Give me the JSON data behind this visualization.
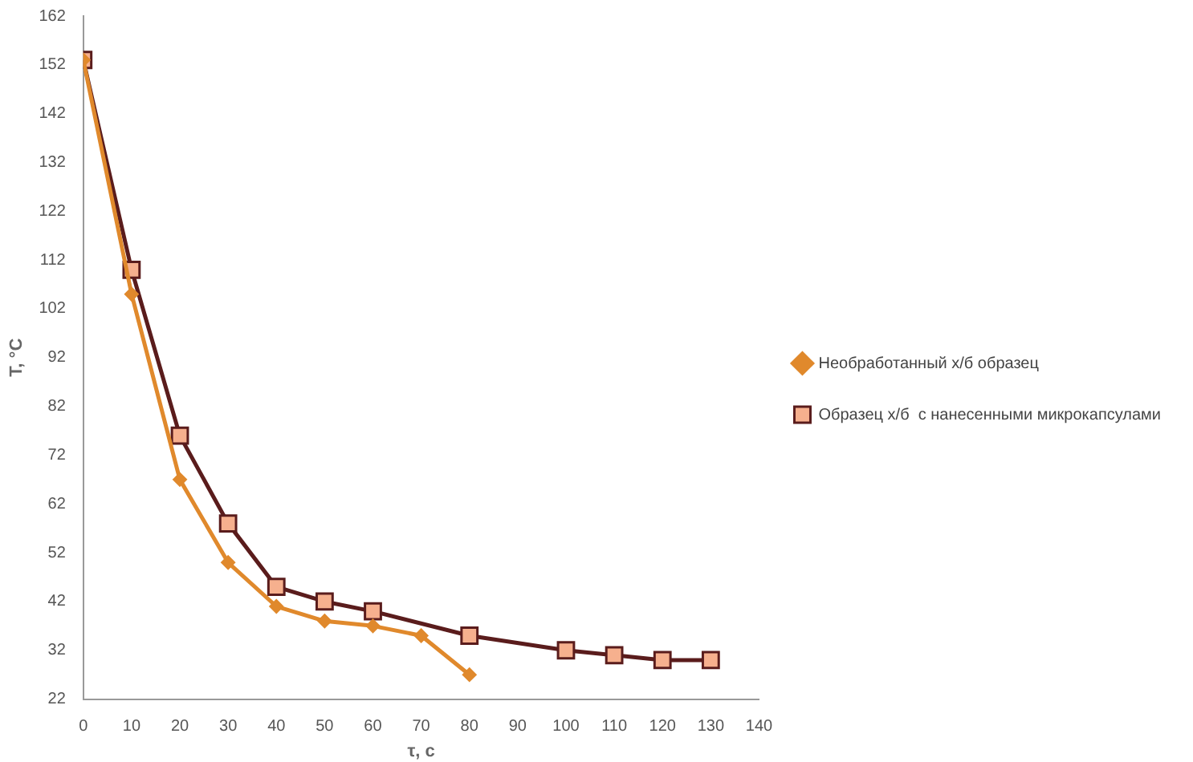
{
  "chart_data": {
    "type": "line",
    "xlabel": "τ, с",
    "ylabel": "Т, °С",
    "xlim": [
      0,
      140
    ],
    "xticks": [
      0,
      10,
      20,
      30,
      40,
      50,
      60,
      70,
      80,
      90,
      100,
      110,
      120,
      130,
      140
    ],
    "ylim": [
      22,
      162
    ],
    "yticks": [
      22,
      32,
      42,
      52,
      62,
      72,
      82,
      92,
      102,
      112,
      122,
      132,
      142,
      152,
      162
    ],
    "grid": false,
    "legend": "right",
    "series": [
      {
        "name": "Необработанный х/б образец",
        "color": "#e0892c",
        "marker": "diamond",
        "x": [
          0,
          10,
          20,
          30,
          40,
          50,
          60,
          70,
          80
        ],
        "values": [
          153,
          105,
          67,
          50,
          41,
          38,
          37,
          35,
          27
        ]
      },
      {
        "name": "Образец х/б  с нанесенными микрокапсулами",
        "color": "#5a1c1c",
        "marker": "square",
        "x": [
          0,
          10,
          20,
          30,
          40,
          50,
          60,
          80,
          100,
          110,
          120,
          130
        ],
        "values": [
          153,
          110,
          76,
          58,
          45,
          42,
          40,
          35,
          32,
          31,
          30,
          30
        ]
      }
    ]
  }
}
